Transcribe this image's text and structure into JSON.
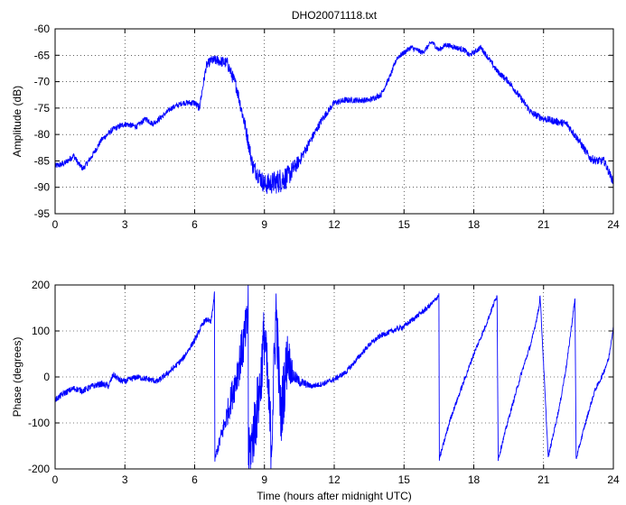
{
  "figure": {
    "background": "#ffffff",
    "line_color": "#0000ff",
    "top_title": "DHO20071118.txt"
  },
  "chart_data": [
    {
      "type": "line",
      "title": "DHO20071118.txt",
      "xlabel": "",
      "ylabel": "Amplitude (dB)",
      "xlim": [
        0,
        24
      ],
      "ylim": [
        -95,
        -60
      ],
      "xticks": [
        0,
        3,
        6,
        9,
        12,
        15,
        18,
        21,
        24
      ],
      "yticks": [
        -95,
        -90,
        -85,
        -80,
        -75,
        -70,
        -65,
        -60
      ],
      "grid": true,
      "series": [
        {
          "color": "#0000ff",
          "noise": [
            [
              0,
              0.6
            ],
            [
              5.5,
              0.5
            ],
            [
              8.4,
              1.5
            ],
            [
              9.8,
              2.5
            ],
            [
              10.6,
              1.0
            ],
            [
              12,
              0.6
            ],
            [
              15,
              0.5
            ],
            [
              18,
              0.5
            ],
            [
              21,
              0.7
            ],
            [
              24,
              0.8
            ]
          ],
          "x": [
            0,
            0.4,
            0.8,
            1.0,
            1.2,
            1.6,
            2.0,
            2.5,
            3.0,
            3.5,
            3.9,
            4.2,
            4.5,
            5.0,
            5.5,
            6.0,
            6.2,
            6.5,
            6.7,
            7.0,
            7.4,
            7.8,
            8.0,
            8.2,
            8.5,
            8.8,
            9.0,
            9.5,
            10.0,
            10.5,
            11.0,
            11.5,
            12.0,
            12.5,
            13.0,
            13.5,
            14.0,
            14.4,
            14.7,
            15.0,
            15.3,
            15.8,
            16.2,
            16.5,
            16.8,
            17.2,
            17.6,
            17.8,
            18.0,
            18.3,
            18.7,
            19.0,
            19.5,
            20.0,
            20.5,
            21.0,
            21.5,
            22.0,
            22.5,
            23.0,
            23.3,
            23.6,
            24.0
          ],
          "values": [
            -86,
            -85.5,
            -84,
            -85.5,
            -86.5,
            -84,
            -81,
            -79,
            -78,
            -78.5,
            -77,
            -78,
            -77,
            -75,
            -74,
            -74,
            -75,
            -67,
            -66,
            -66,
            -66.5,
            -71,
            -75,
            -79,
            -86,
            -88,
            -89.5,
            -89,
            -88,
            -85,
            -81,
            -77,
            -74,
            -73.5,
            -73.5,
            -73.5,
            -72.5,
            -69,
            -65.5,
            -64.5,
            -63.5,
            -64.5,
            -62.5,
            -64,
            -63,
            -63.5,
            -64,
            -65,
            -64.5,
            -63.5,
            -66,
            -68,
            -70,
            -73,
            -76,
            -77,
            -77.5,
            -78,
            -81,
            -84.5,
            -85,
            -85,
            -89
          ]
        }
      ]
    },
    {
      "type": "line",
      "title": "",
      "xlabel": "Time (hours after midnight UTC)",
      "ylabel": "Phase (degrees)",
      "xlim": [
        0,
        24
      ],
      "ylim": [
        -200,
        200
      ],
      "xticks": [
        0,
        3,
        6,
        9,
        12,
        15,
        18,
        21,
        24
      ],
      "yticks": [
        -200,
        -100,
        0,
        100,
        200
      ],
      "grid": true,
      "series": [
        {
          "color": "#0000ff",
          "noise": [
            [
              0,
              7
            ],
            [
              6.8,
              6
            ],
            [
              8.6,
              70
            ],
            [
              9.9,
              70
            ],
            [
              10.3,
              14
            ],
            [
              11,
              6
            ],
            [
              24,
              5
            ]
          ],
          "x": [
            0,
            0.4,
            0.8,
            1.2,
            1.6,
            2.0,
            2.3,
            2.5,
            2.8,
            3.0,
            3.5,
            4.0,
            4.4,
            5.0,
            5.5,
            6.0,
            6.2,
            6.4,
            6.55,
            6.7,
            6.85,
            6.87,
            7.3,
            7.7,
            8.0,
            8.25,
            8.3,
            8.31,
            8.5,
            8.8,
            9.0,
            9.3,
            9.5,
            9.7,
            10.0,
            10.2,
            10.5,
            11.0,
            11.5,
            12.0,
            12.5,
            13.0,
            13.5,
            14.0,
            14.5,
            15.0,
            15.5,
            16.0,
            16.3,
            16.5,
            16.52,
            17.0,
            17.5,
            18.0,
            18.5,
            19.0,
            19.05,
            19.5,
            20.0,
            20.5,
            20.8,
            20.85,
            21.2,
            21.7,
            22.0,
            22.35,
            22.4,
            22.8,
            23.2,
            23.5,
            23.8,
            24.0
          ],
          "values": [
            -50,
            -35,
            -25,
            -30,
            -20,
            -15,
            -20,
            5,
            -8,
            -10,
            0,
            -5,
            -10,
            15,
            40,
            80,
            100,
            120,
            125,
            118,
            178,
            -178,
            -100,
            -20,
            50,
            110,
            178,
            -178,
            -130,
            -30,
            100,
            -150,
            150,
            -90,
            50,
            5,
            -10,
            -20,
            -15,
            -5,
            10,
            40,
            70,
            90,
            100,
            110,
            130,
            150,
            165,
            178,
            -178,
            -90,
            -20,
            50,
            110,
            178,
            -178,
            -90,
            0,
            80,
            150,
            178,
            -175,
            -60,
            30,
            170,
            -178,
            -100,
            -30,
            0,
            40,
            110
          ]
        }
      ]
    }
  ]
}
